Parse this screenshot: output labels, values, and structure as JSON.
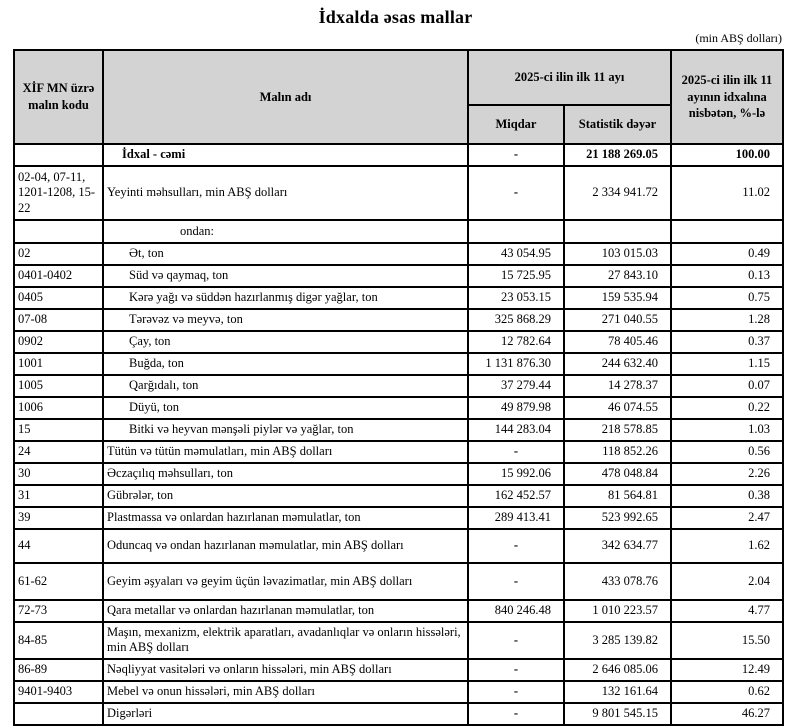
{
  "title": "İdxalda əsas mallar",
  "unit_note": "(min ABŞ dolları)",
  "table": {
    "headers": {
      "code": "XİF MN üzrə malın kodu",
      "name": "Malın adı",
      "period_group": "2025-ci ilin ilk 11 ayı",
      "quantity": "Miqdar",
      "stat_value": "Statistik dəyər",
      "share": "2025-ci ilin ilk 11 ayının idxalına nisbətən, %-lə"
    },
    "rows": [
      {
        "code": "",
        "name": "İdxal - cəmi",
        "qty": "-",
        "value": "21 188 269.05",
        "share": "100.00",
        "style": "total",
        "bold": true
      },
      {
        "code": "02-04, 07-11, 1201-1208, 15-22",
        "name": "Yeyinti məhsulları, min ABŞ dolları",
        "qty": "-",
        "value": "2 334 941.72",
        "share": "11.02",
        "style": "main",
        "bold": false
      },
      {
        "code": "",
        "name": "ondan:",
        "qty": "",
        "value": "",
        "share": "",
        "style": "ondan",
        "bold": false
      },
      {
        "code": "02",
        "name": "Ət, ton",
        "qty": "43 054.95",
        "value": "103 015.03",
        "share": "0.49",
        "style": "sub",
        "bold": false
      },
      {
        "code": "0401-0402",
        "name": "Süd və qaymaq, ton",
        "qty": "15 725.95",
        "value": "27 843.10",
        "share": "0.13",
        "style": "sub",
        "bold": false
      },
      {
        "code": "0405",
        "name": "Kərə yağı və süddən hazırlanmış digər yağlar, ton",
        "qty": "23 053.15",
        "value": "159 535.94",
        "share": "0.75",
        "style": "sub",
        "bold": false
      },
      {
        "code": "07-08",
        "name": "Tərəvəz və meyvə, ton",
        "qty": "325 868.29",
        "value": "271 040.55",
        "share": "1.28",
        "style": "sub",
        "bold": false
      },
      {
        "code": "0902",
        "name": "Çay, ton",
        "qty": "12 782.64",
        "value": "78 405.46",
        "share": "0.37",
        "style": "sub",
        "bold": false
      },
      {
        "code": "1001",
        "name": "Buğda, ton",
        "qty": "1 131 876.30",
        "value": "244 632.40",
        "share": "1.15",
        "style": "sub",
        "bold": false
      },
      {
        "code": "1005",
        "name": "Qarğıdalı, ton",
        "qty": "37 279.44",
        "value": "14 278.37",
        "share": "0.07",
        "style": "sub",
        "bold": false
      },
      {
        "code": "1006",
        "name": "Düyü, ton",
        "qty": "49 879.98",
        "value": "46 074.55",
        "share": "0.22",
        "style": "sub",
        "bold": false
      },
      {
        "code": "15",
        "name": "Bitki və heyvan mənşəli piylər və yağlar, ton",
        "qty": "144 283.04",
        "value": "218 578.85",
        "share": "1.03",
        "style": "sub",
        "bold": false
      },
      {
        "code": "24",
        "name": "Tütün və tütün məmulatları, min ABŞ dolları",
        "qty": "-",
        "value": "118 852.26",
        "share": "0.56",
        "style": "main",
        "bold": false
      },
      {
        "code": "30",
        "name": "Əczaçılıq məhsulları, ton",
        "qty": "15 992.06",
        "value": "478 048.84",
        "share": "2.26",
        "style": "main",
        "bold": false
      },
      {
        "code": "31",
        "name": "Gübrələr, ton",
        "qty": "162 452.57",
        "value": "81 564.81",
        "share": "0.38",
        "style": "main",
        "bold": false
      },
      {
        "code": "39",
        "name": "Plastmassa və onlardan hazırlanan məmulatlar, ton",
        "qty": "289 413.41",
        "value": "523 992.65",
        "share": "2.47",
        "style": "main",
        "bold": false
      },
      {
        "code": "44",
        "name": "Oduncaq və ondan hazırlanan məmulatlar, min ABŞ dolları",
        "qty": "-",
        "value": "342 634.77",
        "share": "1.62",
        "style": "main",
        "bold": false
      },
      {
        "code": "61-62",
        "name": "Geyim əşyaları və geyim üçün ləvazimatlar, min ABŞ dolları",
        "qty": "-",
        "value": "433 078.76",
        "share": "2.04",
        "style": "main",
        "bold": false
      },
      {
        "code": "72-73",
        "name": "Qara metallar və onlardan hazırlanan məmulatlar, ton",
        "qty": "840 246.48",
        "value": "1 010 223.57",
        "share": "4.77",
        "style": "main",
        "bold": false
      },
      {
        "code": "84-85",
        "name": "Maşın, mexanizm, elektrik aparatları, avadanlıqlar və onların hissələri, min ABŞ dolları",
        "qty": "-",
        "value": "3 285 139.82",
        "share": "15.50",
        "style": "main",
        "bold": false
      },
      {
        "code": "86-89",
        "name": "Nəqliyyat vasitələri və onların hissələri, min ABŞ dolları",
        "qty": "-",
        "value": "2 646 085.06",
        "share": "12.49",
        "style": "main",
        "bold": false
      },
      {
        "code": "9401-9403",
        "name": "Mebel və onun hissələri, min ABŞ dolları",
        "qty": "-",
        "value": "132 161.64",
        "share": "0.62",
        "style": "main",
        "bold": false
      },
      {
        "code": "",
        "name": "Digərləri",
        "qty": "-",
        "value": "9 801 545.15",
        "share": "46.27",
        "style": "main",
        "bold": false
      }
    ]
  },
  "colors": {
    "header_bg": "#d3d3d3",
    "border": "#000000",
    "text": "#000000",
    "page_bg": "#ffffff"
  }
}
